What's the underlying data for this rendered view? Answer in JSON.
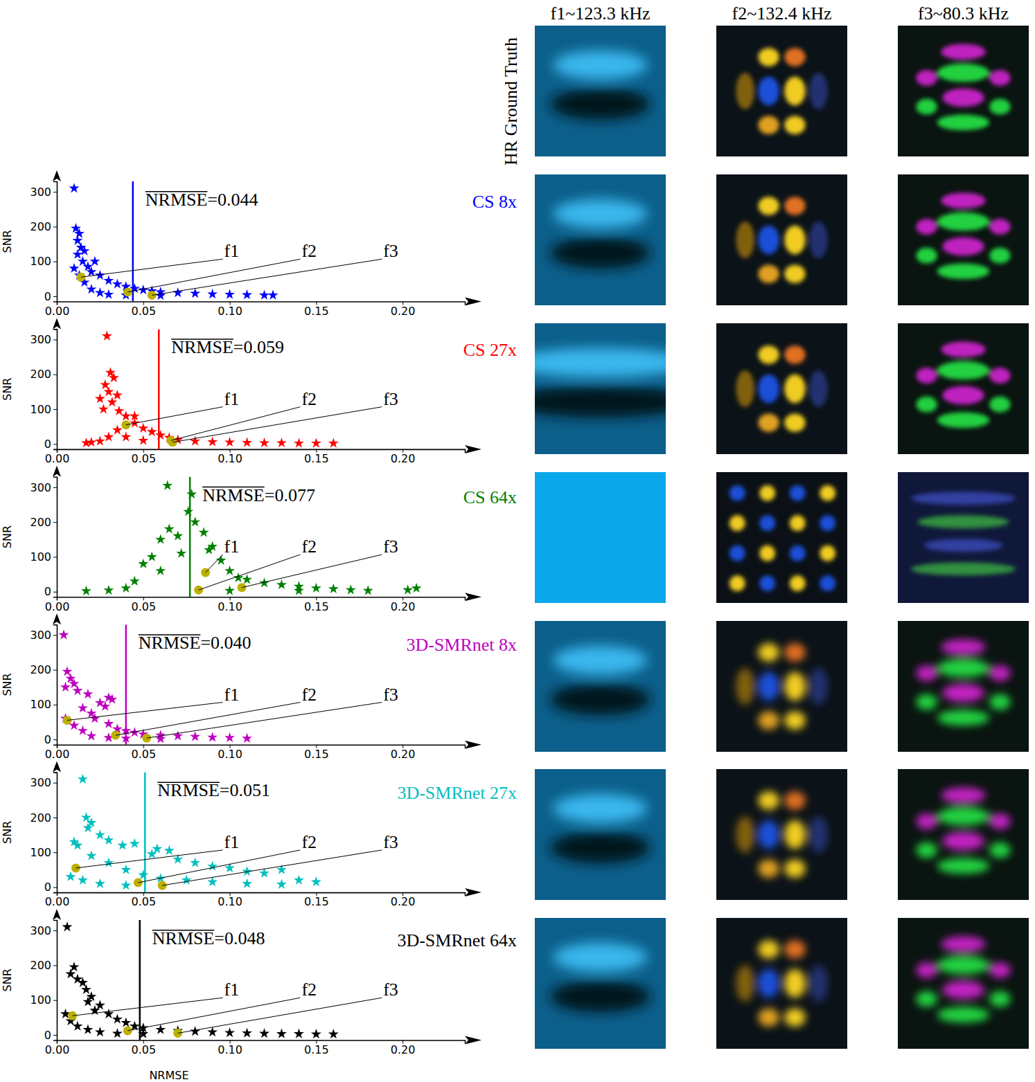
{
  "chart_data": [
    {
      "type": "scatter",
      "title": "CS 8x",
      "color": "#0000ff",
      "marker": "star",
      "y_label": "SNR",
      "xlim": [
        0,
        0.236
      ],
      "ylim": [
        -15,
        330
      ],
      "xticks": [
        {
          "value": 0,
          "label": "0.00"
        },
        0.05,
        {
          "value": 0.1,
          "label": "0.10"
        },
        0.15,
        {
          "value": 0.2,
          "label": "0.20"
        }
      ],
      "yticks": [
        0,
        100,
        200,
        300
      ],
      "x": [
        0.01,
        0.011,
        0.013,
        0.012,
        0.014,
        0.016,
        0.012,
        0.015,
        0.022,
        0.018,
        0.02,
        0.025,
        0.03,
        0.035,
        0.04,
        0.045,
        0.05,
        0.055,
        0.06,
        0.07,
        0.08,
        0.09,
        0.1,
        0.11,
        0.12,
        0.125,
        0.01,
        0.013,
        0.016,
        0.02,
        0.025,
        0.03,
        0.04,
        0.06
      ],
      "y": [
        310,
        195,
        180,
        160,
        140,
        130,
        120,
        100,
        100,
        85,
        70,
        60,
        45,
        35,
        28,
        22,
        18,
        15,
        12,
        10,
        8,
        6,
        5,
        4,
        3,
        3,
        80,
        60,
        40,
        20,
        10,
        5,
        3,
        2
      ],
      "mean": {
        "label": "NRMSE=0.044",
        "value": 0.044
      },
      "highlights": {
        "labels": [
          "f1",
          "f2",
          "f3"
        ],
        "x": [
          0.014,
          0.041,
          0.055
        ],
        "y": [
          55,
          12,
          3
        ],
        "color": "#bcb000"
      }
    },
    {
      "type": "scatter",
      "title": "CS 27x",
      "color": "#ff0000",
      "marker": "star",
      "y_label": "SNR",
      "xlim": [
        0,
        0.236
      ],
      "ylim": [
        -15,
        330
      ],
      "xticks": [
        {
          "value": 0,
          "label": "0.00"
        },
        0.05,
        {
          "value": 0.1,
          "label": "0.10"
        },
        0.15,
        {
          "value": 0.2,
          "label": "0.20"
        }
      ],
      "yticks": [
        0,
        100,
        200,
        300
      ],
      "x": [
        0.029,
        0.031,
        0.033,
        0.028,
        0.03,
        0.025,
        0.035,
        0.032,
        0.027,
        0.036,
        0.04,
        0.045,
        0.05,
        0.055,
        0.06,
        0.065,
        0.07,
        0.08,
        0.09,
        0.1,
        0.11,
        0.12,
        0.13,
        0.14,
        0.15,
        0.16,
        0.017,
        0.02,
        0.025,
        0.03,
        0.035,
        0.04,
        0.05,
        0.045
      ],
      "y": [
        310,
        205,
        190,
        170,
        150,
        130,
        140,
        120,
        100,
        95,
        80,
        60,
        45,
        35,
        25,
        18,
        12,
        8,
        6,
        5,
        4,
        3,
        3,
        2,
        2,
        2,
        3,
        5,
        8,
        20,
        40,
        20,
        10,
        80
      ],
      "mean": {
        "label": "NRMSE=0.059",
        "value": 0.059
      },
      "highlights": {
        "labels": [
          "f1",
          "f2",
          "f3"
        ],
        "x": [
          0.04,
          0.066,
          0.067
        ],
        "y": [
          55,
          10,
          5
        ],
        "color": "#bcb000"
      }
    },
    {
      "type": "scatter",
      "title": "CS 64x",
      "color": "#008000",
      "marker": "star",
      "y_label": "SNR",
      "xlim": [
        0,
        0.236
      ],
      "ylim": [
        -15,
        330
      ],
      "xticks": [
        {
          "value": 0,
          "label": "0.00"
        },
        0.05,
        {
          "value": 0.1,
          "label": "0.10"
        },
        0.15,
        {
          "value": 0.2,
          "label": "0.20"
        }
      ],
      "yticks": [
        0,
        100,
        200,
        300
      ],
      "x": [
        0.064,
        0.078,
        0.08,
        0.076,
        0.06,
        0.065,
        0.07,
        0.085,
        0.09,
        0.088,
        0.055,
        0.05,
        0.06,
        0.072,
        0.095,
        0.1,
        0.105,
        0.11,
        0.12,
        0.13,
        0.14,
        0.15,
        0.16,
        0.17,
        0.18,
        0.017,
        0.03,
        0.04,
        0.045,
        0.203,
        0.208,
        0.1,
        0.14
      ],
      "y": [
        305,
        280,
        200,
        230,
        150,
        180,
        160,
        170,
        130,
        120,
        100,
        80,
        60,
        110,
        90,
        60,
        40,
        35,
        25,
        20,
        15,
        10,
        8,
        5,
        3,
        2,
        4,
        10,
        30,
        5,
        10,
        3,
        3
      ],
      "mean": {
        "label": "NRMSE=0.077",
        "value": 0.077
      },
      "highlights": {
        "labels": [
          "f1",
          "f2",
          "f3"
        ],
        "x": [
          0.086,
          0.082,
          0.107
        ],
        "y": [
          55,
          5,
          12
        ],
        "color": "#bcb000"
      }
    },
    {
      "type": "scatter",
      "title": "3D-SMRnet 8x",
      "color": "#bf00bf",
      "marker": "star",
      "y_label": "SNR",
      "xlim": [
        0,
        0.236
      ],
      "ylim": [
        -15,
        330
      ],
      "xticks": [
        {
          "value": 0,
          "label": "0.00"
        },
        0.05,
        {
          "value": 0.1,
          "label": "0.10"
        },
        0.15,
        {
          "value": 0.2,
          "label": "0.20"
        }
      ],
      "yticks": [
        0,
        100,
        200,
        300
      ],
      "x": [
        0.004,
        0.006,
        0.008,
        0.01,
        0.005,
        0.012,
        0.018,
        0.025,
        0.03,
        0.032,
        0.028,
        0.015,
        0.02,
        0.022,
        0.03,
        0.035,
        0.04,
        0.045,
        0.05,
        0.06,
        0.07,
        0.08,
        0.09,
        0.1,
        0.11,
        0.005,
        0.01,
        0.015,
        0.02,
        0.03,
        0.04,
        0.06
      ],
      "y": [
        300,
        195,
        175,
        160,
        150,
        140,
        130,
        105,
        120,
        115,
        95,
        90,
        75,
        60,
        45,
        30,
        25,
        20,
        15,
        12,
        10,
        8,
        6,
        5,
        3,
        60,
        40,
        25,
        10,
        5,
        3,
        2
      ],
      "mean": {
        "label": "NRMSE=0.040",
        "value": 0.04
      },
      "highlights": {
        "labels": [
          "f1",
          "f2",
          "f3"
        ],
        "x": [
          0.006,
          0.034,
          0.052
        ],
        "y": [
          55,
          12,
          4
        ],
        "color": "#bcb000"
      }
    },
    {
      "type": "scatter",
      "title": "3D-SMRnet 27x",
      "color": "#00bfbf",
      "marker": "star",
      "y_label": "SNR",
      "xlim": [
        0,
        0.236
      ],
      "ylim": [
        -15,
        330
      ],
      "xticks": [
        {
          "value": 0,
          "label": "0.00"
        },
        0.05,
        {
          "value": 0.1,
          "label": "0.10"
        },
        0.15,
        {
          "value": 0.2,
          "label": "0.20"
        }
      ],
      "yticks": [
        0,
        100,
        200,
        300
      ],
      "x": [
        0.015,
        0.017,
        0.02,
        0.018,
        0.01,
        0.012,
        0.025,
        0.03,
        0.038,
        0.045,
        0.058,
        0.055,
        0.065,
        0.07,
        0.08,
        0.09,
        0.1,
        0.11,
        0.12,
        0.13,
        0.14,
        0.15,
        0.02,
        0.03,
        0.04,
        0.05,
        0.06,
        0.075,
        0.09,
        0.11,
        0.13,
        0.008,
        0.015,
        0.025,
        0.04
      ],
      "y": [
        310,
        200,
        185,
        170,
        130,
        120,
        150,
        135,
        120,
        125,
        110,
        95,
        105,
        80,
        70,
        60,
        55,
        45,
        40,
        50,
        20,
        15,
        90,
        70,
        50,
        35,
        25,
        20,
        15,
        10,
        8,
        30,
        20,
        10,
        5
      ],
      "mean": {
        "label": "NRMSE=0.051",
        "value": 0.051
      },
      "highlights": {
        "labels": [
          "f1",
          "f2",
          "f3"
        ],
        "x": [
          0.011,
          0.047,
          0.061
        ],
        "y": [
          55,
          13,
          5
        ],
        "color": "#bcb000"
      }
    },
    {
      "type": "scatter",
      "title": "3D-SMRnet 64x",
      "color": "#000000",
      "marker": "star",
      "y_label": "SNR",
      "x_label": "NRMSE",
      "xlim": [
        0,
        0.236
      ],
      "ylim": [
        -15,
        330
      ],
      "xticks": [
        {
          "value": 0,
          "label": "0.00"
        },
        0.05,
        {
          "value": 0.1,
          "label": "0.10"
        },
        0.15,
        {
          "value": 0.2,
          "label": "0.20"
        }
      ],
      "yticks": [
        0,
        100,
        200,
        300
      ],
      "x": [
        0.006,
        0.008,
        0.01,
        0.012,
        0.015,
        0.017,
        0.02,
        0.018,
        0.025,
        0.022,
        0.03,
        0.035,
        0.04,
        0.045,
        0.05,
        0.06,
        0.07,
        0.08,
        0.09,
        0.1,
        0.11,
        0.12,
        0.13,
        0.14,
        0.15,
        0.16,
        0.005,
        0.008,
        0.012,
        0.018,
        0.025,
        0.035,
        0.05
      ],
      "y": [
        310,
        175,
        195,
        160,
        150,
        130,
        110,
        95,
        85,
        70,
        60,
        45,
        35,
        25,
        20,
        15,
        12,
        10,
        8,
        6,
        5,
        4,
        3,
        3,
        2,
        2,
        60,
        40,
        25,
        15,
        8,
        4,
        3
      ],
      "mean": {
        "label": "NRMSE=0.048",
        "value": 0.048
      },
      "highlights": {
        "labels": [
          "f1",
          "f2",
          "f3"
        ],
        "x": [
          0.009,
          0.041,
          0.07
        ],
        "y": [
          55,
          12,
          5
        ],
        "color": "#bcb000"
      }
    }
  ],
  "images": {
    "row_label": "HR Ground Truth",
    "columns": [
      "f1~123.3 kHz",
      "f2~132.4 kHz",
      "f3~80.3 kHz"
    ]
  }
}
